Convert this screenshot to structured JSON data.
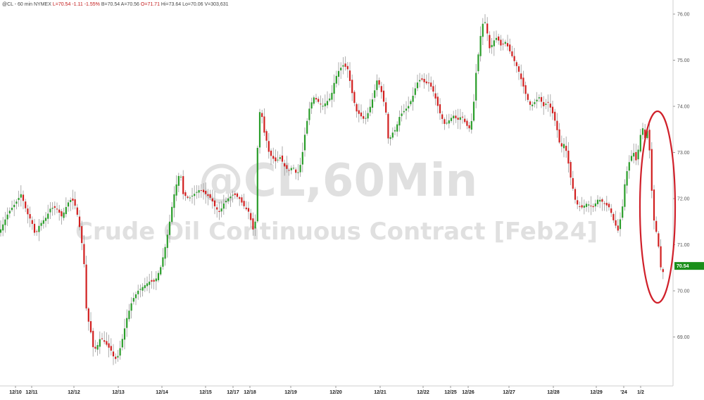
{
  "header": {
    "symbol": "@CL - 60 min",
    "exchange": "NYMEX",
    "last": "L=70.54",
    "change": "-1.11",
    "change_pct": "-1.55%",
    "bid": "B=70.54",
    "ask": "A=70.56",
    "open": "O=71.71",
    "high": "Hi=73.64",
    "low": "Lo=70.06",
    "volume": "V=303,631"
  },
  "watermark": {
    "line1": "@CL,60Min",
    "line2": "Crude Oil Continuous Contract [Feb24]"
  },
  "colors": {
    "up": "#2a9d2a",
    "down": "#d11f1f",
    "wick": "#9a9a9a",
    "last_price_badge": "#1a8f1a",
    "annotation_circle": "#d0202a",
    "watermark": "#d6d6d6"
  },
  "annotation": {
    "type": "ellipse",
    "color": "red",
    "highlight": "late drop"
  },
  "chart_data": {
    "type": "candlestick",
    "y_ticks": [
      "69.00",
      "70.00",
      "71.00",
      "72.00",
      "73.00",
      "74.00",
      "75.00",
      "76.00"
    ],
    "ylim": [
      68.2,
      76.3
    ],
    "last_price": "70.54",
    "x_ticks": [
      "12/10",
      "12/11",
      "12/12",
      "12/13",
      "12/14",
      "12/15",
      "12/17",
      "12/18",
      "12/19",
      "12/20",
      "12/21",
      "12/22",
      "12/25",
      "12/26",
      "12/27",
      "12/28",
      "12/29",
      "'24",
      "1/2"
    ],
    "grid": false,
    "close_path": [
      [
        0,
        71.3
      ],
      [
        12,
        71.7
      ],
      [
        22,
        71.9
      ],
      [
        30,
        72.1
      ],
      [
        38,
        71.7
      ],
      [
        45,
        71.5
      ],
      [
        50,
        71.2
      ],
      [
        55,
        71.4
      ],
      [
        60,
        71.5
      ],
      [
        66,
        71.6
      ],
      [
        72,
        71.8
      ],
      [
        80,
        71.8
      ],
      [
        88,
        71.6
      ],
      [
        96,
        71.9
      ],
      [
        102,
        72.0
      ],
      [
        108,
        71.8
      ],
      [
        114,
        71.3
      ],
      [
        119,
        70.7
      ],
      [
        123,
        69.5
      ],
      [
        128,
        69.2
      ],
      [
        133,
        68.7
      ],
      [
        138,
        68.8
      ],
      [
        143,
        69.0
      ],
      [
        148,
        68.9
      ],
      [
        153,
        68.8
      ],
      [
        158,
        68.7
      ],
      [
        163,
        68.5
      ],
      [
        168,
        68.6
      ],
      [
        173,
        68.9
      ],
      [
        180,
        69.4
      ],
      [
        188,
        69.8
      ],
      [
        196,
        70.0
      ],
      [
        204,
        70.1
      ],
      [
        212,
        70.2
      ],
      [
        220,
        70.2
      ],
      [
        228,
        70.5
      ],
      [
        234,
        70.9
      ],
      [
        240,
        71.4
      ],
      [
        246,
        72.0
      ],
      [
        252,
        72.4
      ],
      [
        256,
        72.6
      ],
      [
        260,
        72.1
      ],
      [
        268,
        72.0
      ],
      [
        276,
        72.1
      ],
      [
        284,
        72.2
      ],
      [
        292,
        72.1
      ],
      [
        300,
        72.0
      ],
      [
        306,
        71.8
      ],
      [
        312,
        71.7
      ],
      [
        318,
        71.9
      ],
      [
        324,
        72.0
      ],
      [
        332,
        72.1
      ],
      [
        340,
        72.0
      ],
      [
        348,
        71.8
      ],
      [
        354,
        71.7
      ],
      [
        358,
        71.4
      ],
      [
        362,
        71.2
      ],
      [
        366,
        73.2
      ],
      [
        370,
        74.1
      ],
      [
        374,
        73.5
      ],
      [
        378,
        73.3
      ],
      [
        382,
        73.0
      ],
      [
        386,
        72.9
      ],
      [
        392,
        72.8
      ],
      [
        398,
        72.9
      ],
      [
        404,
        72.7
      ],
      [
        410,
        72.6
      ],
      [
        416,
        72.7
      ],
      [
        422,
        72.5
      ],
      [
        428,
        72.8
      ],
      [
        434,
        73.5
      ],
      [
        440,
        74.0
      ],
      [
        446,
        74.2
      ],
      [
        452,
        74.1
      ],
      [
        458,
        74.0
      ],
      [
        464,
        74.1
      ],
      [
        470,
        74.2
      ],
      [
        476,
        74.6
      ],
      [
        482,
        74.8
      ],
      [
        488,
        74.9
      ],
      [
        494,
        74.8
      ],
      [
        500,
        74.3
      ],
      [
        506,
        73.9
      ],
      [
        512,
        73.8
      ],
      [
        518,
        73.7
      ],
      [
        524,
        73.9
      ],
      [
        530,
        74.2
      ],
      [
        536,
        74.6
      ],
      [
        542,
        74.3
      ],
      [
        548,
        73.9
      ],
      [
        552,
        73.2
      ],
      [
        556,
        73.4
      ],
      [
        562,
        73.5
      ],
      [
        568,
        73.8
      ],
      [
        574,
        73.9
      ],
      [
        580,
        74.0
      ],
      [
        586,
        74.2
      ],
      [
        592,
        74.5
      ],
      [
        598,
        74.6
      ],
      [
        604,
        74.5
      ],
      [
        610,
        74.5
      ],
      [
        616,
        74.3
      ],
      [
        620,
        74.1
      ],
      [
        626,
        73.8
      ],
      [
        632,
        73.6
      ],
      [
        638,
        73.7
      ],
      [
        644,
        73.8
      ],
      [
        650,
        73.7
      ],
      [
        656,
        73.8
      ],
      [
        662,
        73.6
      ],
      [
        668,
        73.5
      ],
      [
        672,
        73.9
      ],
      [
        676,
        74.7
      ],
      [
        680,
        75.2
      ],
      [
        684,
        75.7
      ],
      [
        688,
        75.9
      ],
      [
        692,
        75.6
      ],
      [
        696,
        75.2
      ],
      [
        700,
        75.4
      ],
      [
        706,
        75.5
      ],
      [
        712,
        75.3
      ],
      [
        718,
        75.4
      ],
      [
        724,
        75.2
      ],
      [
        730,
        75.0
      ],
      [
        736,
        74.8
      ],
      [
        742,
        74.5
      ],
      [
        748,
        74.2
      ],
      [
        754,
        74.0
      ],
      [
        760,
        74.1
      ],
      [
        766,
        74.2
      ],
      [
        772,
        74.0
      ],
      [
        778,
        74.1
      ],
      [
        784,
        73.9
      ],
      [
        790,
        73.6
      ],
      [
        796,
        73.1
      ],
      [
        802,
        73.2
      ],
      [
        806,
        72.9
      ],
      [
        810,
        72.5
      ],
      [
        814,
        72.2
      ],
      [
        818,
        71.9
      ],
      [
        826,
        71.8
      ],
      [
        834,
        71.9
      ],
      [
        842,
        71.8
      ],
      [
        850,
        72.0
      ],
      [
        858,
        71.9
      ],
      [
        866,
        71.8
      ],
      [
        872,
        71.5
      ],
      [
        878,
        71.3
      ],
      [
        884,
        71.8
      ],
      [
        888,
        72.4
      ],
      [
        892,
        72.7
      ],
      [
        896,
        72.9
      ],
      [
        900,
        73.0
      ],
      [
        904,
        72.8
      ],
      [
        908,
        73.2
      ],
      [
        912,
        73.6
      ],
      [
        916,
        73.3
      ],
      [
        920,
        73.5
      ],
      [
        924,
        72.8
      ],
      [
        926,
        72.1
      ],
      [
        928,
        71.6
      ],
      [
        932,
        71.3
      ],
      [
        936,
        70.9
      ],
      [
        940,
        70.3
      ],
      [
        944,
        70.54
      ]
    ]
  }
}
